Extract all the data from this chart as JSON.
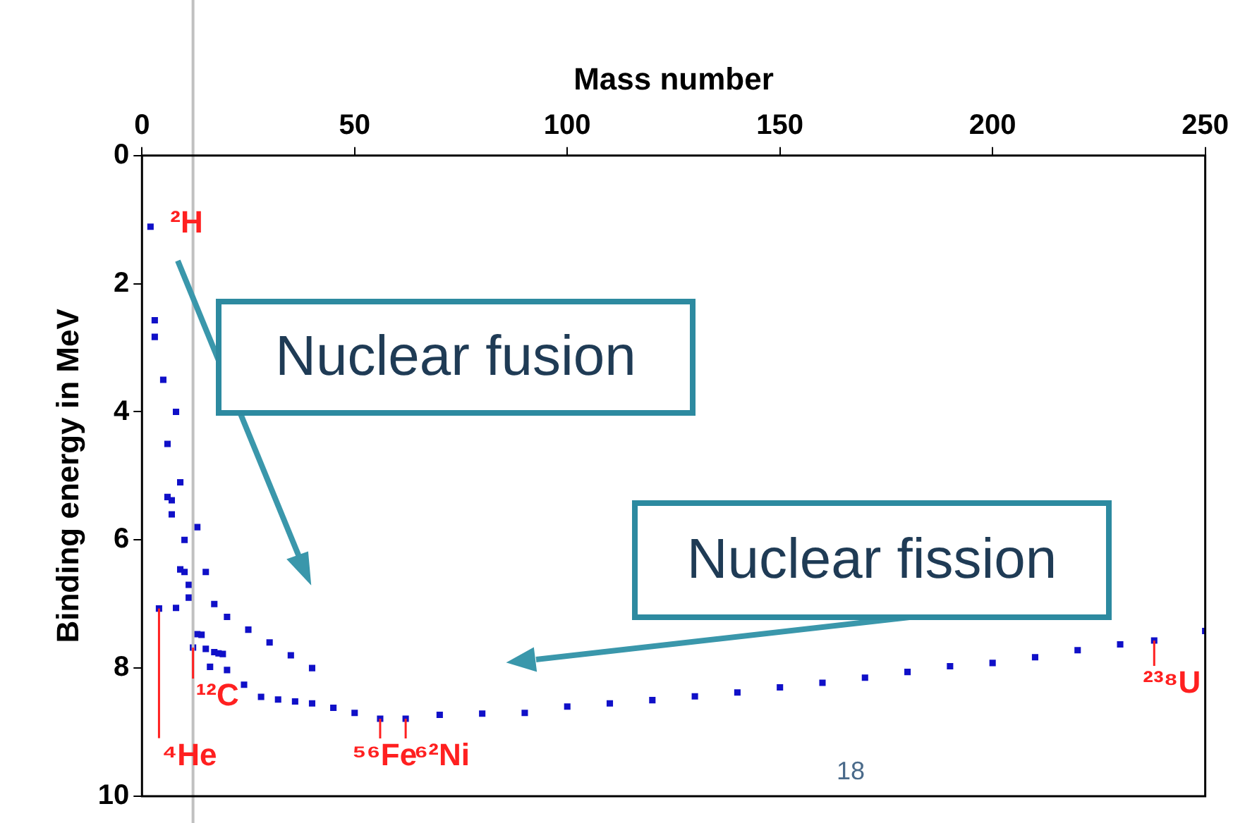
{
  "chart_data": {
    "type": "scatter",
    "xlabel": "Mass number",
    "ylabel": "Binding energy in MeV",
    "series": [
      {
        "color": "#1010c8",
        "x": [
          2,
          3,
          3,
          4,
          5,
          6,
          6,
          7,
          7,
          8,
          8,
          9,
          9,
          10,
          10,
          11,
          11,
          12,
          13,
          13,
          14,
          15,
          15,
          16,
          17,
          17,
          18,
          19,
          20,
          20,
          24,
          25,
          28,
          30,
          32,
          35,
          36,
          40,
          40,
          45,
          50,
          56,
          62,
          70,
          80,
          90,
          100,
          110,
          120,
          130,
          140,
          150,
          160,
          170,
          180,
          190,
          200,
          210,
          220,
          230,
          238,
          250
        ],
        "values": [
          1.11,
          2.57,
          2.83,
          7.07,
          3.5,
          5.33,
          4.5,
          5.6,
          5.38,
          7.06,
          4.0,
          6.46,
          5.1,
          6.5,
          6.0,
          6.9,
          6.7,
          7.68,
          7.47,
          5.8,
          7.48,
          7.7,
          6.5,
          7.98,
          7.75,
          7.0,
          7.77,
          7.78,
          8.03,
          7.2,
          8.26,
          7.4,
          8.45,
          7.6,
          8.49,
          7.8,
          8.52,
          8.55,
          8.0,
          8.62,
          8.7,
          8.79,
          8.79,
          8.73,
          8.71,
          8.7,
          8.6,
          8.55,
          8.5,
          8.44,
          8.38,
          8.3,
          8.23,
          8.15,
          8.06,
          7.97,
          7.92,
          7.83,
          7.72,
          7.63,
          7.57,
          7.42
        ]
      }
    ],
    "xlim": [
      0,
      250
    ],
    "xticks": [
      0,
      50,
      100,
      150,
      200,
      250
    ],
    "ylim": [
      10,
      0
    ],
    "yticks": [
      0,
      2,
      4,
      6,
      8,
      10
    ],
    "grid": false,
    "legend": false,
    "marker": "square",
    "ref_lines": [
      {
        "axis": "x",
        "value": 12,
        "color": "#c0c0c0"
      }
    ],
    "annotations": [
      {
        "text": "²H",
        "x": 2,
        "y": 1.11
      },
      {
        "text": "⁴He",
        "x": 4,
        "y": 7.07
      },
      {
        "text": "¹²C",
        "x": 12,
        "y": 7.68
      },
      {
        "text": "⁵⁶Fe",
        "x": 56,
        "y": 8.79
      },
      {
        "text": "⁶²Ni",
        "x": 62,
        "y": 8.79
      },
      {
        "text": "²³⁸U",
        "x": 238,
        "y": 7.57
      },
      "Nuclear fusion",
      "Nuclear fission",
      "18"
    ]
  }
}
